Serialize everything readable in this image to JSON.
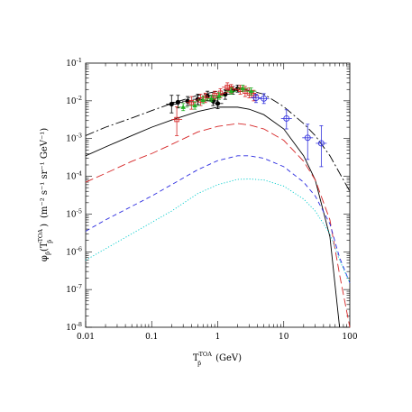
{
  "chart_data": {
    "type": "line",
    "title": "",
    "xlabel": {
      "symbol": "T",
      "superscript": "TOA",
      "subscript": "p̄",
      "unit": "(GeV)"
    },
    "ylabel": {
      "symbol": "φ",
      "subscript": "p̄",
      "argument_symbol": "T",
      "argument_superscript": "TOA",
      "argument_subscript": "p̄",
      "unit": "(m⁻² s⁻¹ sr⁻¹ GeV⁻¹)"
    },
    "x_scale": "log",
    "y_scale": "log",
    "xlim": [
      0.01,
      100
    ],
    "ylim": [
      1e-08,
      0.1
    ],
    "x_tick_labels": [
      "0.01",
      "0.1",
      "1",
      "10",
      "100"
    ],
    "y_tick_labels": [
      {
        "base": "10",
        "exp": "-8"
      },
      {
        "base": "10",
        "exp": "-7"
      },
      {
        "base": "10",
        "exp": "-6"
      },
      {
        "base": "10",
        "exp": "-5"
      },
      {
        "base": "10",
        "exp": "-4"
      },
      {
        "base": "10",
        "exp": "-3"
      },
      {
        "base": "10",
        "exp": "-2"
      },
      {
        "base": "10",
        "exp": "-1"
      }
    ],
    "grid": false,
    "legend": "none",
    "series": [
      {
        "style": "long-dash-dot",
        "color": "#000000",
        "x": [
          0.01,
          0.02,
          0.05,
          0.1,
          0.2,
          0.5,
          1,
          2,
          3,
          5,
          10,
          20,
          30,
          50,
          100
        ],
        "y": [
          0.0012,
          0.002,
          0.0035,
          0.0055,
          0.0085,
          0.014,
          0.018,
          0.02,
          0.019,
          0.015,
          0.007,
          0.0025,
          0.0012,
          0.00035,
          4e-05
        ]
      },
      {
        "style": "solid",
        "color": "#000000",
        "x": [
          0.01,
          0.02,
          0.05,
          0.1,
          0.2,
          0.5,
          1,
          2,
          3,
          5,
          10,
          20,
          30,
          50,
          70
        ],
        "y": [
          0.00035,
          0.0006,
          0.0012,
          0.002,
          0.0031,
          0.0052,
          0.0068,
          0.0068,
          0.006,
          0.0043,
          0.0018,
          0.00035,
          8e-05,
          2.5e-06,
          1e-08
        ]
      },
      {
        "style": "long-dash",
        "color": "#d62728",
        "x": [
          0.01,
          0.02,
          0.05,
          0.1,
          0.2,
          0.5,
          1,
          2,
          3,
          5,
          10,
          20,
          30,
          50,
          70,
          100
        ],
        "y": [
          7e-05,
          0.00012,
          0.00025,
          0.0004,
          0.0007,
          0.0015,
          0.0021,
          0.0025,
          0.0023,
          0.0018,
          0.0009,
          0.00025,
          8e-05,
          7e-06,
          2.5e-07,
          8e-09
        ]
      },
      {
        "style": "short-dash",
        "color": "#2a2ae0",
        "x": [
          0.01,
          0.02,
          0.05,
          0.1,
          0.2,
          0.5,
          1,
          2,
          3,
          5,
          10,
          20,
          30,
          50,
          70,
          100
        ],
        "y": [
          3.5e-06,
          7e-06,
          1.6e-05,
          3e-05,
          6e-05,
          0.00015,
          0.00026,
          0.00035,
          0.00035,
          0.0003,
          0.00018,
          7e-05,
          3e-05,
          5.5e-06,
          7e-07,
          1.5e-07
        ]
      },
      {
        "style": "dotted",
        "color": "#00cccc",
        "x": [
          0.01,
          0.02,
          0.05,
          0.1,
          0.2,
          0.5,
          1,
          2,
          3,
          5,
          10,
          20,
          30,
          50,
          70,
          100
        ],
        "y": [
          6e-07,
          1.2e-06,
          3e-06,
          6e-06,
          1.2e-05,
          3.5e-05,
          6e-05,
          8.3e-05,
          8.5e-05,
          8e-05,
          5.5e-05,
          2.5e-05,
          1.2e-05,
          3e-06,
          6e-07,
          1.5e-07
        ]
      }
    ],
    "data_points": [
      {
        "name": "",
        "color": "#000000",
        "marker": "filled-circle",
        "points": [
          {
            "x": 0.2,
            "y": 0.0082,
            "elo": 0.0048,
            "ehi": 0.014
          },
          {
            "x": 0.25,
            "y": 0.0092,
            "elo": 0.0065,
            "ehi": 0.014
          },
          {
            "x": 0.35,
            "y": 0.0098,
            "elo": 0.0075,
            "ehi": 0.013
          },
          {
            "x": 0.5,
            "y": 0.011,
            "elo": 0.008,
            "ehi": 0.015
          },
          {
            "x": 0.7,
            "y": 0.0135,
            "elo": 0.01,
            "ehi": 0.018
          },
          {
            "x": 0.85,
            "y": 0.01,
            "elo": 0.0075,
            "ehi": 0.014
          },
          {
            "x": 1.0,
            "y": 0.0085,
            "elo": 0.0062,
            "ehi": 0.012
          },
          {
            "x": 1.3,
            "y": 0.015,
            "elo": 0.011,
            "ehi": 0.02
          },
          {
            "x": 1.7,
            "y": 0.019,
            "elo": 0.015,
            "ehi": 0.024
          },
          {
            "x": 2.0,
            "y": 0.021,
            "elo": 0.017,
            "ehi": 0.026
          }
        ]
      },
      {
        "name": "",
        "color": "#d62728",
        "marker": "open-square",
        "points": [
          {
            "x": 0.24,
            "y": 0.0032,
            "elo": 0.0012,
            "ehi": 0.007
          },
          {
            "x": 0.4,
            "y": 0.009,
            "elo": 0.006,
            "ehi": 0.013
          },
          {
            "x": 0.55,
            "y": 0.0105,
            "elo": 0.0075,
            "ehi": 0.015
          },
          {
            "x": 0.65,
            "y": 0.012,
            "elo": 0.009,
            "ehi": 0.016
          },
          {
            "x": 0.9,
            "y": 0.014,
            "elo": 0.011,
            "ehi": 0.018
          },
          {
            "x": 1.1,
            "y": 0.016,
            "elo": 0.012,
            "ehi": 0.021
          },
          {
            "x": 1.4,
            "y": 0.023,
            "elo": 0.017,
            "ehi": 0.03
          },
          {
            "x": 1.6,
            "y": 0.021,
            "elo": 0.016,
            "ehi": 0.027
          },
          {
            "x": 2.2,
            "y": 0.02,
            "elo": 0.015,
            "ehi": 0.026
          },
          {
            "x": 2.6,
            "y": 0.018,
            "elo": 0.013,
            "ehi": 0.024
          },
          {
            "x": 3.0,
            "y": 0.016,
            "elo": 0.012,
            "ehi": 0.022
          },
          {
            "x": 3.5,
            "y": 0.014,
            "elo": 0.01,
            "ehi": 0.019
          }
        ]
      },
      {
        "name": "",
        "color": "#22b022",
        "marker": "filled-triangle",
        "points": [
          {
            "x": 0.3,
            "y": 0.0068,
            "elo": 0.0055,
            "ehi": 0.0085
          },
          {
            "x": 0.45,
            "y": 0.0075,
            "elo": 0.006,
            "ehi": 0.0095
          },
          {
            "x": 0.6,
            "y": 0.0105,
            "elo": 0.0085,
            "ehi": 0.013
          },
          {
            "x": 0.8,
            "y": 0.0115,
            "elo": 0.0095,
            "ehi": 0.014
          },
          {
            "x": 1.05,
            "y": 0.0135,
            "elo": 0.011,
            "ehi": 0.0165
          },
          {
            "x": 1.6,
            "y": 0.018,
            "elo": 0.015,
            "ehi": 0.022
          },
          {
            "x": 2.4,
            "y": 0.0215,
            "elo": 0.018,
            "ehi": 0.026
          },
          {
            "x": 3.2,
            "y": 0.018,
            "elo": 0.0145,
            "ehi": 0.022
          }
        ]
      },
      {
        "name": "",
        "color": "#3333dd",
        "marker": "open-circle",
        "points": [
          {
            "x": 3.8,
            "y": 0.012,
            "elo": 0.009,
            "ehi": 0.015
          },
          {
            "x": 5.0,
            "y": 0.0115,
            "elo": 0.0085,
            "ehi": 0.0155
          },
          {
            "x": 11.0,
            "y": 0.0034,
            "elo": 0.0018,
            "ehi": 0.0058
          },
          {
            "x": 23.0,
            "y": 0.00105,
            "elo": 0.00028,
            "ehi": 0.0024
          },
          {
            "x": 37.0,
            "y": 0.00075,
            "elo": 0.00018,
            "ehi": 0.0022
          }
        ]
      }
    ]
  }
}
